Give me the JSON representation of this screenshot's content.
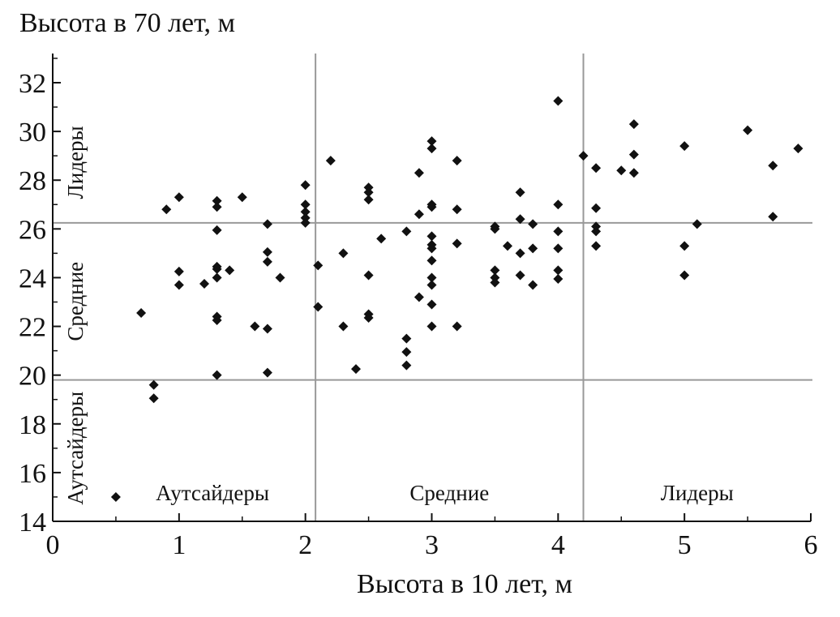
{
  "chart_data": {
    "type": "scatter",
    "title": "",
    "ylabel": "Высота в 70 лет, м",
    "xlabel": "Высота в 10 лет, м",
    "xlim": [
      0,
      6
    ],
    "ylim": [
      14,
      33
    ],
    "xticks": [
      0,
      1,
      2,
      3,
      4,
      5,
      6
    ],
    "yticks": [
      14,
      16,
      18,
      20,
      22,
      24,
      26,
      28,
      30,
      32
    ],
    "x_thresholds": [
      2.08,
      4.2
    ],
    "y_thresholds": [
      19.8,
      26.25
    ],
    "x_group_labels": [
      "Аутсайдеры",
      "Средние",
      "Лидеры"
    ],
    "y_group_labels": [
      "Аутсайдеры",
      "Средние",
      "Лидеры"
    ],
    "marker_color": "#111111",
    "grid_line_color": "#999999",
    "points": [
      [
        0.5,
        15.0
      ],
      [
        0.7,
        22.55
      ],
      [
        0.8,
        19.6
      ],
      [
        0.8,
        19.05
      ],
      [
        0.9,
        26.8
      ],
      [
        1.0,
        27.3
      ],
      [
        1.0,
        24.25
      ],
      [
        1.0,
        23.7
      ],
      [
        1.2,
        23.75
      ],
      [
        1.3,
        27.15
      ],
      [
        1.3,
        26.9
      ],
      [
        1.3,
        25.95
      ],
      [
        1.3,
        24.45
      ],
      [
        1.3,
        24.35
      ],
      [
        1.3,
        24.0
      ],
      [
        1.3,
        22.4
      ],
      [
        1.3,
        22.25
      ],
      [
        1.3,
        20.0
      ],
      [
        1.4,
        24.3
      ],
      [
        1.5,
        27.3
      ],
      [
        1.6,
        22.0
      ],
      [
        1.7,
        26.2
      ],
      [
        1.7,
        25.05
      ],
      [
        1.7,
        24.65
      ],
      [
        1.7,
        21.9
      ],
      [
        1.7,
        20.1
      ],
      [
        1.8,
        24.0
      ],
      [
        2.0,
        27.8
      ],
      [
        2.0,
        27.0
      ],
      [
        2.0,
        26.7
      ],
      [
        2.0,
        26.45
      ],
      [
        2.0,
        26.25
      ],
      [
        2.1,
        24.5
      ],
      [
        2.1,
        22.8
      ],
      [
        2.2,
        28.8
      ],
      [
        2.3,
        25.0
      ],
      [
        2.3,
        22.0
      ],
      [
        2.4,
        20.25
      ],
      [
        2.5,
        27.7
      ],
      [
        2.5,
        27.5
      ],
      [
        2.5,
        27.2
      ],
      [
        2.5,
        24.1
      ],
      [
        2.5,
        22.5
      ],
      [
        2.5,
        22.35
      ],
      [
        2.6,
        25.6
      ],
      [
        2.8,
        25.9
      ],
      [
        2.8,
        21.5
      ],
      [
        2.8,
        20.95
      ],
      [
        2.8,
        20.4
      ],
      [
        2.9,
        28.3
      ],
      [
        2.9,
        26.6
      ],
      [
        2.9,
        23.2
      ],
      [
        3.0,
        29.6
      ],
      [
        3.0,
        29.3
      ],
      [
        3.0,
        27.0
      ],
      [
        3.0,
        26.9
      ],
      [
        3.0,
        25.7
      ],
      [
        3.0,
        25.35
      ],
      [
        3.0,
        25.2
      ],
      [
        3.0,
        24.7
      ],
      [
        3.0,
        24.0
      ],
      [
        3.0,
        23.7
      ],
      [
        3.0,
        22.9
      ],
      [
        3.0,
        22.0
      ],
      [
        3.2,
        28.8
      ],
      [
        3.2,
        26.8
      ],
      [
        3.2,
        25.4
      ],
      [
        3.2,
        22.0
      ],
      [
        3.5,
        26.1
      ],
      [
        3.5,
        26.0
      ],
      [
        3.5,
        24.3
      ],
      [
        3.5,
        24.0
      ],
      [
        3.5,
        23.8
      ],
      [
        3.6,
        25.3
      ],
      [
        3.7,
        27.5
      ],
      [
        3.7,
        26.4
      ],
      [
        3.7,
        25.0
      ],
      [
        3.7,
        24.1
      ],
      [
        3.8,
        26.2
      ],
      [
        3.8,
        25.2
      ],
      [
        3.8,
        23.7
      ],
      [
        4.0,
        31.25
      ],
      [
        4.0,
        27.0
      ],
      [
        4.0,
        25.9
      ],
      [
        4.0,
        25.2
      ],
      [
        4.0,
        24.3
      ],
      [
        4.0,
        23.95
      ],
      [
        4.2,
        29.0
      ],
      [
        4.3,
        28.5
      ],
      [
        4.3,
        26.85
      ],
      [
        4.3,
        26.1
      ],
      [
        4.3,
        25.9
      ],
      [
        4.3,
        25.3
      ],
      [
        4.5,
        28.4
      ],
      [
        4.6,
        30.3
      ],
      [
        4.6,
        29.05
      ],
      [
        4.6,
        28.3
      ],
      [
        5.0,
        29.4
      ],
      [
        5.0,
        25.3
      ],
      [
        5.0,
        24.1
      ],
      [
        5.1,
        26.2
      ],
      [
        5.5,
        30.05
      ],
      [
        5.7,
        28.6
      ],
      [
        5.7,
        26.5
      ],
      [
        5.9,
        29.3
      ]
    ]
  }
}
